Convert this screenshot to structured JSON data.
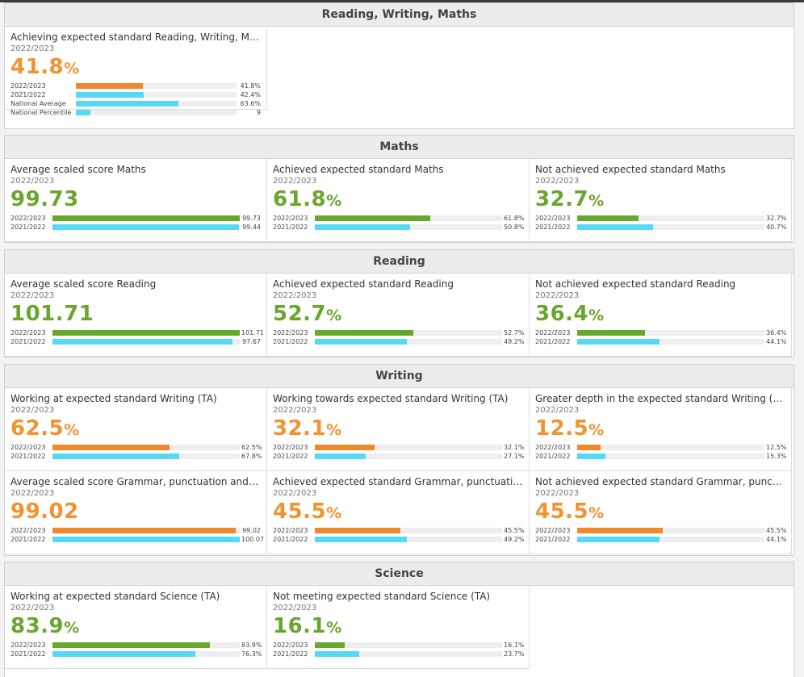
{
  "sections": [
    {
      "title": "Reading, Writing, Maths",
      "cards": [
        {
          "title": "Achieving expected standard Reading, Writing, Maths (...",
          "year": "2022/2023",
          "value": "41.8",
          "suffix": "%",
          "color": "orange",
          "bars": [
            {
              "label": "2022/2023",
              "value": "41.8%",
              "fraction": 0.418,
              "fill": "orange"
            },
            {
              "label": "2021/2022",
              "value": "42.4%",
              "fraction": 0.424,
              "fill": "cyan"
            },
            {
              "label": "National Average",
              "value": "63.6%",
              "fraction": 0.636,
              "fill": "cyan"
            },
            {
              "label": "National Percentile",
              "value": "9",
              "fraction": 0.09,
              "fill": "cyan"
            }
          ]
        }
      ]
    },
    {
      "title": "Maths",
      "cards": [
        {
          "title": "Average scaled score Maths",
          "year": "2022/2023",
          "value": "99.73",
          "suffix": "",
          "color": "green",
          "bars": [
            {
              "label": "2022/2023",
              "value": "99.73",
              "fraction": 1.0,
              "fill": "green"
            },
            {
              "label": "2021/2022",
              "value": "99.44",
              "fraction": 0.997,
              "fill": "cyan"
            }
          ]
        },
        {
          "title": "Achieved expected standard Maths",
          "year": "2022/2023",
          "value": "61.8",
          "suffix": "%",
          "color": "green",
          "bars": [
            {
              "label": "2022/2023",
              "value": "61.8%",
              "fraction": 0.618,
              "fill": "green"
            },
            {
              "label": "2021/2022",
              "value": "50.8%",
              "fraction": 0.508,
              "fill": "cyan"
            }
          ]
        },
        {
          "title": "Not achieved expected standard Maths",
          "year": "2022/2023",
          "value": "32.7",
          "suffix": "%",
          "color": "green",
          "bars": [
            {
              "label": "2022/2023",
              "value": "32.7%",
              "fraction": 0.327,
              "fill": "green"
            },
            {
              "label": "2021/2022",
              "value": "40.7%",
              "fraction": 0.407,
              "fill": "cyan"
            }
          ]
        }
      ]
    },
    {
      "title": "Reading",
      "cards": [
        {
          "title": "Average scaled score Reading",
          "year": "2022/2023",
          "value": "101.71",
          "suffix": "",
          "color": "green",
          "bars": [
            {
              "label": "2022/2023",
              "value": "101.71",
              "fraction": 1.0,
              "fill": "green"
            },
            {
              "label": "2021/2022",
              "value": "97.67",
              "fraction": 0.96,
              "fill": "cyan"
            }
          ]
        },
        {
          "title": "Achieved expected standard Reading",
          "year": "2022/2023",
          "value": "52.7",
          "suffix": "%",
          "color": "green",
          "bars": [
            {
              "label": "2022/2023",
              "value": "52.7%",
              "fraction": 0.527,
              "fill": "green"
            },
            {
              "label": "2021/2022",
              "value": "49.2%",
              "fraction": 0.492,
              "fill": "cyan"
            }
          ]
        },
        {
          "title": "Not achieved expected standard Reading",
          "year": "2022/2023",
          "value": "36.4",
          "suffix": "%",
          "color": "green",
          "bars": [
            {
              "label": "2022/2023",
              "value": "36.4%",
              "fraction": 0.364,
              "fill": "green"
            },
            {
              "label": "2021/2022",
              "value": "44.1%",
              "fraction": 0.441,
              "fill": "cyan"
            }
          ]
        }
      ]
    },
    {
      "title": "Writing",
      "cards": [
        {
          "title": "Working at expected standard Writing (TA)",
          "year": "2022/2023",
          "value": "62.5",
          "suffix": "%",
          "color": "orange",
          "bars": [
            {
              "label": "2022/2023",
              "value": "62.5%",
              "fraction": 0.625,
              "fill": "orange"
            },
            {
              "label": "2021/2022",
              "value": "67.8%",
              "fraction": 0.678,
              "fill": "cyan"
            }
          ]
        },
        {
          "title": "Working towards expected standard Writing (TA)",
          "year": "2022/2023",
          "value": "32.1",
          "suffix": "%",
          "color": "orange",
          "bars": [
            {
              "label": "2022/2023",
              "value": "32.1%",
              "fraction": 0.321,
              "fill": "orange"
            },
            {
              "label": "2021/2022",
              "value": "27.1%",
              "fraction": 0.271,
              "fill": "cyan"
            }
          ]
        },
        {
          "title": "Greater depth in the expected standard Writing (TA)",
          "year": "2022/2023",
          "value": "12.5",
          "suffix": "%",
          "color": "orange",
          "bars": [
            {
              "label": "2022/2023",
              "value": "12.5%",
              "fraction": 0.125,
              "fill": "orange"
            },
            {
              "label": "2021/2022",
              "value": "15.3%",
              "fraction": 0.153,
              "fill": "cyan"
            }
          ]
        },
        {
          "title": "Average scaled score Grammar, punctuation and spelling",
          "year": "2022/2023",
          "value": "99.02",
          "suffix": "",
          "color": "orange",
          "bars": [
            {
              "label": "2022/2023",
              "value": "99.02",
              "fraction": 0.98,
              "fill": "orange"
            },
            {
              "label": "2021/2022",
              "value": "100.07",
              "fraction": 1.0,
              "fill": "cyan"
            }
          ]
        },
        {
          "title": "Achieved expected standard Grammar, punctuation and...",
          "year": "2022/2023",
          "value": "45.5",
          "suffix": "%",
          "color": "orange",
          "bars": [
            {
              "label": "2022/2023",
              "value": "45.5%",
              "fraction": 0.455,
              "fill": "orange"
            },
            {
              "label": "2021/2022",
              "value": "49.2%",
              "fraction": 0.492,
              "fill": "cyan"
            }
          ]
        },
        {
          "title": "Not achieved expected standard Grammar, punctuation...",
          "year": "2022/2023",
          "value": "45.5",
          "suffix": "%",
          "color": "orange",
          "bars": [
            {
              "label": "2022/2023",
              "value": "45.5%",
              "fraction": 0.455,
              "fill": "orange"
            },
            {
              "label": "2021/2022",
              "value": "44.1%",
              "fraction": 0.441,
              "fill": "cyan"
            }
          ]
        }
      ]
    },
    {
      "title": "Science",
      "cards": [
        {
          "title": "Working at expected standard Science (TA)",
          "year": "2022/2023",
          "value": "83.9",
          "suffix": "%",
          "color": "green",
          "bars": [
            {
              "label": "2022/2023",
              "value": "83.9%",
              "fraction": 0.839,
              "fill": "green"
            },
            {
              "label": "2021/2022",
              "value": "76.3%",
              "fraction": 0.763,
              "fill": "cyan"
            }
          ]
        },
        {
          "title": "Not meeting expected standard Science (TA)",
          "year": "2022/2023",
          "value": "16.1",
          "suffix": "%",
          "color": "green",
          "bars": [
            {
              "label": "2022/2023",
              "value": "16.1%",
              "fraction": 0.161,
              "fill": "green"
            },
            {
              "label": "2021/2022",
              "value": "23.7%",
              "fraction": 0.237,
              "fill": "cyan"
            }
          ]
        }
      ]
    }
  ]
}
